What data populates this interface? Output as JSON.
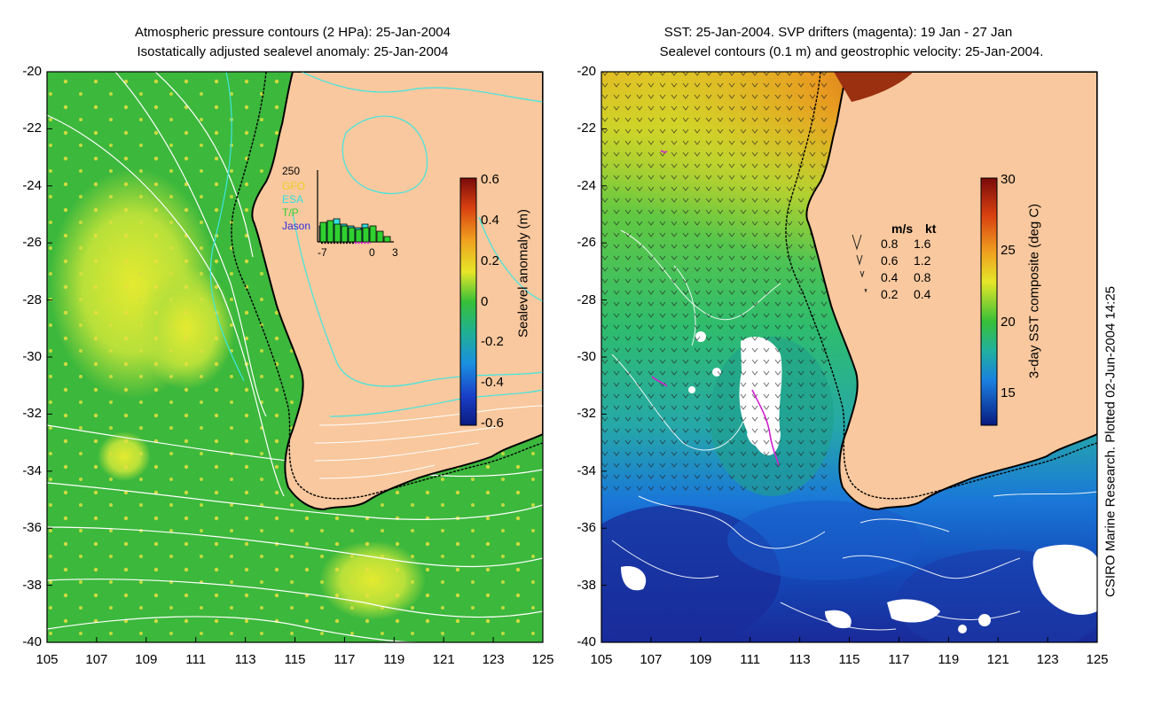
{
  "colors": {
    "land": "#f9c89e",
    "left_sea": "#38b83a",
    "left_high": "#c4e63a",
    "coast": "#000000",
    "cyan_contour": "#3fe6e0",
    "white_contour": "#ffffff",
    "magenta": "#d020d0",
    "sst_warm": "#f07818",
    "sst_mid": "#2ec26a",
    "sst_cool": "#1a6ad8",
    "sst_cold": "#1238a8"
  },
  "left_panel": {
    "title_line1": "Atmospheric pressure contours (2 HPa): 25-Jan-2004",
    "title_line2": "Isostatically adjusted sealevel anomaly: 25-Jan-2004",
    "y_ticks": [
      "-20",
      "-22",
      "-24",
      "-26",
      "-28",
      "-30",
      "-32",
      "-34",
      "-36",
      "-38",
      "-40"
    ],
    "x_ticks": [
      "105",
      "107",
      "109",
      "111",
      "113",
      "115",
      "117",
      "119",
      "121",
      "123",
      "125"
    ],
    "colorbar": {
      "label": "Sealevel anomaly (m)",
      "ticks": [
        "0.6",
        "0.4",
        "0.2",
        "0",
        "-0.2",
        "-0.4",
        "-0.6"
      ]
    },
    "inset": {
      "count_label": "250",
      "sources": [
        "GFO",
        "ESA",
        "T/P",
        "Jason"
      ],
      "source_colors": [
        "#e8d020",
        "#30e0e0",
        "#30d030",
        "#3030e0"
      ],
      "x_ticks": [
        "-7",
        "0",
        "3"
      ],
      "bars": [
        {
          "cyan": 0.45,
          "green": 0.55
        },
        {
          "cyan": 0.55,
          "green": 0.6
        },
        {
          "cyan": 0.65,
          "green": 0.5
        },
        {
          "cyan": 0.5,
          "green": 0.45
        },
        {
          "cyan": 0.45,
          "green": 0.4
        },
        {
          "cyan": 0.4,
          "green": 0.35
        },
        {
          "cyan": 0.5,
          "green": 0.4
        },
        {
          "cyan": 0.35,
          "green": 0.45
        },
        {
          "cyan": 0.0,
          "green": 0.3
        },
        {
          "cyan": 0.0,
          "green": 0.15
        }
      ]
    }
  },
  "right_panel": {
    "title_line1": "SST: 25-Jan-2004. SVP drifters (magenta): 19 Jan - 27 Jan",
    "title_line2": "Sealevel contours (0.1 m) and geostrophic velocity: 25-Jan-2004.",
    "y_ticks": [
      "-20",
      "-22",
      "-24",
      "-26",
      "-28",
      "-30",
      "-32",
      "-34",
      "-36",
      "-38",
      "-40"
    ],
    "x_ticks": [
      "105",
      "107",
      "109",
      "111",
      "113",
      "115",
      "117",
      "119",
      "121",
      "123",
      "125"
    ],
    "colorbar": {
      "label": "3-day SST composite (deg C)",
      "ticks": [
        "30",
        "25",
        "20",
        "15"
      ]
    },
    "velocity_legend": {
      "header_ms": "m/s",
      "header_kt": "kt",
      "rows": [
        {
          "ms": "0.8",
          "kt": "1.6"
        },
        {
          "ms": "0.6",
          "kt": "1.2"
        },
        {
          "ms": "0.4",
          "kt": "0.8"
        },
        {
          "ms": "0.2",
          "kt": "0.4"
        }
      ]
    }
  },
  "credit": "CSIRO Marine Research. Plotted 02-Jun-2004 14:25"
}
